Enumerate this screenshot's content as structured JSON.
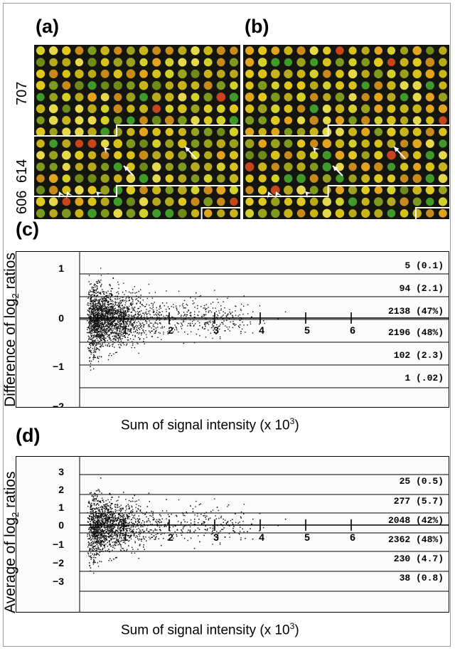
{
  "panels": {
    "a": {
      "label": "(a)",
      "rows": [
        "707",
        "614",
        "606"
      ]
    },
    "b": {
      "label": "(b)"
    },
    "c": {
      "label": "(c)",
      "ylabel_pre": "Difference of log",
      "ylabel_sub": "2",
      "ylabel_post": " ratios",
      "xlabel_pre": "Sum of signal intensity (x 10",
      "xlabel_sup": "3",
      "xlabel_post": ")"
    },
    "d": {
      "label": "(d)",
      "ylabel_pre": "Average of log",
      "ylabel_sub": "2",
      "ylabel_post": " ratios",
      "xlabel_pre": "Sum of signal intensity (x 10",
      "xlabel_sup": "3",
      "xlabel_post": ")"
    }
  },
  "chart_data": [
    {
      "type": "scatter",
      "panel": "c",
      "xticks": [
        "1",
        "2",
        "3",
        "4",
        "5",
        "6"
      ],
      "yticks": [
        "1",
        "0",
        "−1",
        "−2"
      ],
      "xlim": [
        0,
        7
      ],
      "ylim": [
        -2.1,
        1.5
      ],
      "bands": [
        "5 (0.1)",
        "94 (2.1)",
        "2138 (47%)",
        "2196 (48%)",
        "102 (2.3)",
        "1 (.02)"
      ]
    },
    {
      "type": "scatter",
      "panel": "d",
      "xticks": [
        "1",
        "2",
        "3",
        "4",
        "5",
        "6"
      ],
      "yticks": [
        "3",
        "2",
        "1",
        "0",
        "−1",
        "−2",
        "−3"
      ],
      "xlim": [
        0,
        7
      ],
      "ylim": [
        -4,
        3.6
      ],
      "bands": [
        "25 (0.5)",
        "277 (5.7)",
        "2048 (42%)",
        "2362 (48%)",
        "230 (4.7)",
        "38 (0.8)"
      ]
    }
  ]
}
